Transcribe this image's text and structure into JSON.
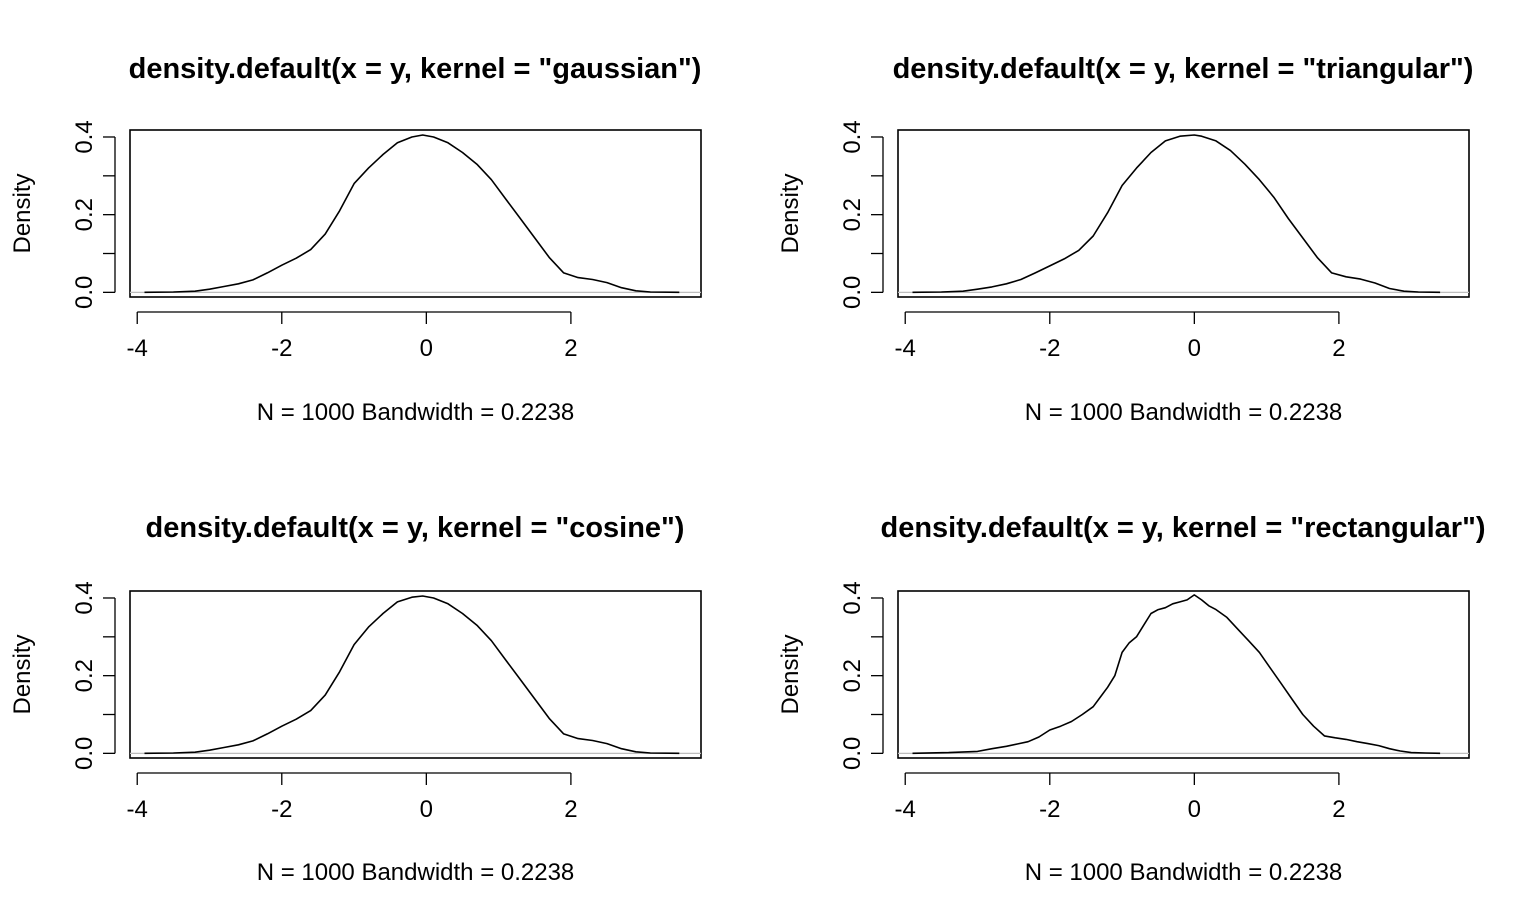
{
  "chart_data": [
    {
      "type": "line",
      "title": "density.default(x = y, kernel = \"gaussian\")",
      "xlabel": "N = 1000   Bandwidth = 0.2238",
      "ylabel": "Density",
      "xlim": [
        -4.1,
        3.8
      ],
      "ylim": [
        -0.012,
        0.418
      ],
      "xticks": [
        -4,
        -2,
        0,
        2
      ],
      "xtick_labels": [
        "-4",
        "-2",
        "0",
        "2"
      ],
      "yticks": [
        0.0,
        0.1,
        0.2,
        0.3,
        0.4
      ],
      "ytick_labels": [
        "0.0",
        "",
        "0.2",
        "",
        "0.4"
      ],
      "baseline": 0,
      "series": [
        {
          "x": [
            -3.9,
            -3.5,
            -3.2,
            -3.0,
            -2.8,
            -2.6,
            -2.4,
            -2.2,
            -2.0,
            -1.8,
            -1.6,
            -1.4,
            -1.2,
            -1.0,
            -0.8,
            -0.6,
            -0.4,
            -0.2,
            -0.05,
            0.1,
            0.3,
            0.5,
            0.7,
            0.9,
            1.1,
            1.3,
            1.5,
            1.7,
            1.9,
            2.1,
            2.3,
            2.5,
            2.7,
            2.9,
            3.1,
            3.5
          ],
          "y": [
            0.0,
            0.001,
            0.003,
            0.008,
            0.015,
            0.022,
            0.032,
            0.05,
            0.07,
            0.088,
            0.11,
            0.15,
            0.21,
            0.28,
            0.32,
            0.355,
            0.385,
            0.4,
            0.405,
            0.4,
            0.385,
            0.36,
            0.33,
            0.29,
            0.24,
            0.19,
            0.14,
            0.09,
            0.05,
            0.038,
            0.033,
            0.025,
            0.012,
            0.004,
            0.001,
            0.0
          ]
        }
      ]
    },
    {
      "type": "line",
      "title": "density.default(x = y, kernel = \"triangular\")",
      "xlabel": "N = 1000   Bandwidth = 0.2238",
      "ylabel": "Density",
      "xlim": [
        -4.1,
        3.8
      ],
      "ylim": [
        -0.012,
        0.418
      ],
      "xticks": [
        -4,
        -2,
        0,
        2
      ],
      "xtick_labels": [
        "-4",
        "-2",
        "0",
        "2"
      ],
      "yticks": [
        0.0,
        0.1,
        0.2,
        0.3,
        0.4
      ],
      "ytick_labels": [
        "0.0",
        "",
        "0.2",
        "",
        "0.4"
      ],
      "baseline": 0,
      "series": [
        {
          "x": [
            -3.9,
            -3.5,
            -3.2,
            -3.0,
            -2.8,
            -2.6,
            -2.4,
            -2.2,
            -2.0,
            -1.8,
            -1.6,
            -1.4,
            -1.2,
            -1.0,
            -0.8,
            -0.6,
            -0.4,
            -0.2,
            0.0,
            0.1,
            0.3,
            0.5,
            0.7,
            0.9,
            1.1,
            1.3,
            1.5,
            1.7,
            1.9,
            2.1,
            2.3,
            2.5,
            2.7,
            2.9,
            3.1,
            3.4
          ],
          "y": [
            0.0,
            0.001,
            0.003,
            0.008,
            0.014,
            0.022,
            0.033,
            0.05,
            0.068,
            0.086,
            0.108,
            0.145,
            0.205,
            0.275,
            0.32,
            0.36,
            0.39,
            0.402,
            0.405,
            0.402,
            0.39,
            0.365,
            0.33,
            0.29,
            0.245,
            0.19,
            0.14,
            0.09,
            0.05,
            0.04,
            0.034,
            0.024,
            0.01,
            0.003,
            0.001,
            0.0
          ]
        }
      ]
    },
    {
      "type": "line",
      "title": "density.default(x = y, kernel = \"cosine\")",
      "xlabel": "N = 1000   Bandwidth = 0.2238",
      "ylabel": "Density",
      "xlim": [
        -4.1,
        3.8
      ],
      "ylim": [
        -0.012,
        0.418
      ],
      "xticks": [
        -4,
        -2,
        0,
        2
      ],
      "xtick_labels": [
        "-4",
        "-2",
        "0",
        "2"
      ],
      "yticks": [
        0.0,
        0.1,
        0.2,
        0.3,
        0.4
      ],
      "ytick_labels": [
        "0.0",
        "",
        "0.2",
        "",
        "0.4"
      ],
      "baseline": 0,
      "series": [
        {
          "x": [
            -3.9,
            -3.5,
            -3.2,
            -3.0,
            -2.8,
            -2.6,
            -2.4,
            -2.2,
            -2.0,
            -1.8,
            -1.6,
            -1.4,
            -1.2,
            -1.0,
            -0.8,
            -0.6,
            -0.4,
            -0.2,
            -0.05,
            0.1,
            0.3,
            0.5,
            0.7,
            0.9,
            1.1,
            1.3,
            1.5,
            1.7,
            1.9,
            2.1,
            2.3,
            2.5,
            2.7,
            2.9,
            3.1,
            3.5
          ],
          "y": [
            0.0,
            0.001,
            0.003,
            0.008,
            0.015,
            0.022,
            0.032,
            0.05,
            0.07,
            0.088,
            0.11,
            0.15,
            0.21,
            0.28,
            0.325,
            0.36,
            0.39,
            0.402,
            0.405,
            0.4,
            0.385,
            0.36,
            0.33,
            0.29,
            0.24,
            0.19,
            0.14,
            0.09,
            0.05,
            0.038,
            0.033,
            0.025,
            0.012,
            0.004,
            0.001,
            0.0
          ]
        }
      ]
    },
    {
      "type": "line",
      "title": "density.default(x = y, kernel = \"rectangular\")",
      "xlabel": "N = 1000   Bandwidth = 0.2238",
      "ylabel": "Density",
      "xlim": [
        -4.1,
        3.8
      ],
      "ylim": [
        -0.012,
        0.418
      ],
      "xticks": [
        -4,
        -2,
        0,
        2
      ],
      "xtick_labels": [
        "-4",
        "-2",
        "0",
        "2"
      ],
      "yticks": [
        0.0,
        0.1,
        0.2,
        0.3,
        0.4
      ],
      "ytick_labels": [
        "0.0",
        "",
        "0.2",
        "",
        "0.4"
      ],
      "baseline": 0,
      "series": [
        {
          "x": [
            -3.9,
            -3.4,
            -3.0,
            -2.8,
            -2.6,
            -2.45,
            -2.3,
            -2.15,
            -2.0,
            -1.85,
            -1.7,
            -1.55,
            -1.4,
            -1.3,
            -1.2,
            -1.1,
            -1.0,
            -0.9,
            -0.8,
            -0.7,
            -0.6,
            -0.5,
            -0.4,
            -0.3,
            -0.2,
            -0.1,
            0.0,
            0.1,
            0.2,
            0.3,
            0.45,
            0.6,
            0.75,
            0.9,
            1.05,
            1.2,
            1.35,
            1.5,
            1.65,
            1.8,
            1.95,
            2.1,
            2.25,
            2.4,
            2.55,
            2.7,
            2.85,
            3.0,
            3.2,
            3.4
          ],
          "y": [
            0.0,
            0.002,
            0.005,
            0.012,
            0.018,
            0.024,
            0.03,
            0.042,
            0.06,
            0.07,
            0.082,
            0.1,
            0.12,
            0.145,
            0.17,
            0.2,
            0.26,
            0.285,
            0.3,
            0.33,
            0.36,
            0.37,
            0.375,
            0.385,
            0.39,
            0.395,
            0.408,
            0.395,
            0.38,
            0.37,
            0.35,
            0.32,
            0.29,
            0.26,
            0.22,
            0.18,
            0.14,
            0.1,
            0.07,
            0.045,
            0.04,
            0.036,
            0.03,
            0.025,
            0.02,
            0.012,
            0.006,
            0.002,
            0.001,
            0.0
          ]
        }
      ]
    }
  ]
}
